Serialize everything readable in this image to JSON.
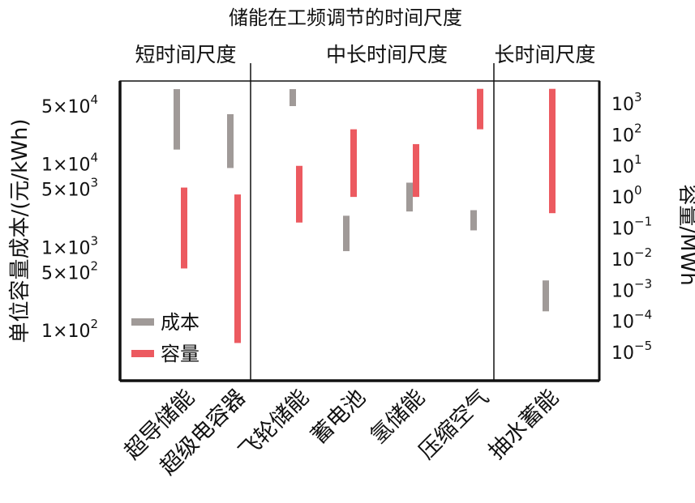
{
  "chart_data": {
    "type": "bar",
    "title": "储能在工频调节的时间尺度",
    "sections": [
      "短时间尺度",
      "中长时间尺度",
      "长时间尺度"
    ],
    "categories": [
      "超导储能",
      "超级电容器",
      "飞轮储能",
      "蓄电池",
      "氢储能",
      "压缩空气",
      "抽水蓄能"
    ],
    "ylabel_left": "单位容量成本/(元/kWh)",
    "ylabel_right": "容量/MWh",
    "left_ticks": [
      {
        "value": 50000,
        "mant": "5×10",
        "exp": "4"
      },
      {
        "value": 10000,
        "mant": "1×10",
        "exp": "4"
      },
      {
        "value": 5000,
        "mant": "5×10",
        "exp": "3"
      },
      {
        "value": 1000,
        "mant": "1×10",
        "exp": "3"
      },
      {
        "value": 500,
        "mant": "5×10",
        "exp": "2"
      },
      {
        "value": 100,
        "mant": "1×10",
        "exp": "2"
      }
    ],
    "right_ticks": [
      {
        "value": 1000,
        "mant": "10",
        "exp": "3"
      },
      {
        "value": 100,
        "mant": "10",
        "exp": "2"
      },
      {
        "value": 10,
        "mant": "10",
        "exp": "1"
      },
      {
        "value": 1,
        "mant": "10",
        "exp": "0"
      },
      {
        "value": 0.1,
        "mant": "10",
        "exp": "−1"
      },
      {
        "value": 0.01,
        "mant": "10",
        "exp": "−2"
      },
      {
        "value": 0.001,
        "mant": "10",
        "exp": "−3"
      },
      {
        "value": 0.0001,
        "mant": "10",
        "exp": "−4"
      },
      {
        "value": 1e-05,
        "mant": "10",
        "exp": "−5"
      }
    ],
    "series": [
      {
        "name": "成本",
        "color": "#a09a98",
        "ranges": [
          [
            15000,
            80000
          ],
          [
            9000,
            40000
          ],
          [
            50000,
            80000
          ],
          [
            900,
            2400
          ],
          [
            2700,
            6000
          ],
          [
            1600,
            2800
          ],
          [
            170,
            400
          ]
        ]
      },
      {
        "name": "容量",
        "color": "#ec5a60",
        "ranges": [
          [
            0.005,
            2
          ],
          [
            2e-05,
            1.2
          ],
          [
            0.15,
            10
          ],
          [
            1,
            150
          ],
          [
            1,
            50
          ],
          [
            150,
            3000
          ],
          [
            0.3,
            3000
          ]
        ]
      }
    ]
  }
}
